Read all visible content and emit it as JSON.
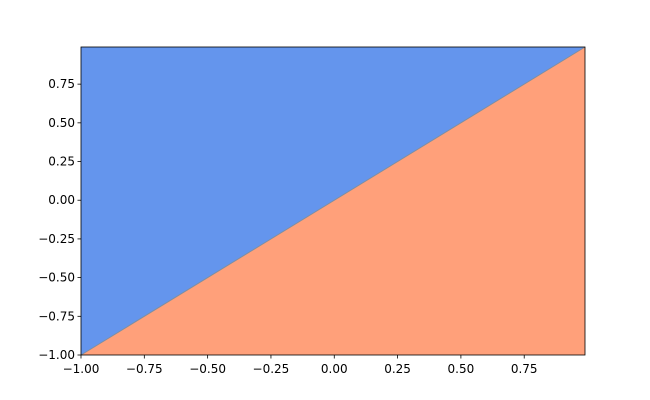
{
  "chart_data": {
    "type": "decision-regions",
    "boundary": {
      "x": [
        -1,
        0.99
      ],
      "y": [
        -1,
        0.99
      ]
    },
    "above_color": "#6495ed",
    "below_color": "#ffa07a",
    "xlim": [
      -1,
      0.99
    ],
    "ylim": [
      -1,
      0.99
    ],
    "xticks": [
      {
        "value": -1,
        "label": "−1.00"
      },
      {
        "value": -0.75,
        "label": "−0.75"
      },
      {
        "value": -0.5,
        "label": "−0.50"
      },
      {
        "value": -0.25,
        "label": "−0.25"
      },
      {
        "value": 0,
        "label": "0.00"
      },
      {
        "value": 0.25,
        "label": "0.25"
      },
      {
        "value": 0.5,
        "label": "0.50"
      },
      {
        "value": 0.75,
        "label": "0.75"
      }
    ],
    "yticks": [
      {
        "value": -1,
        "label": "−1.00"
      },
      {
        "value": -0.75,
        "label": "−0.75"
      },
      {
        "value": -0.5,
        "label": "−0.50"
      },
      {
        "value": -0.25,
        "label": "−0.25"
      },
      {
        "value": 0,
        "label": "0.00"
      },
      {
        "value": 0.25,
        "label": "0.25"
      },
      {
        "value": 0.5,
        "label": "0.50"
      },
      {
        "value": 0.75,
        "label": "0.75"
      }
    ]
  }
}
